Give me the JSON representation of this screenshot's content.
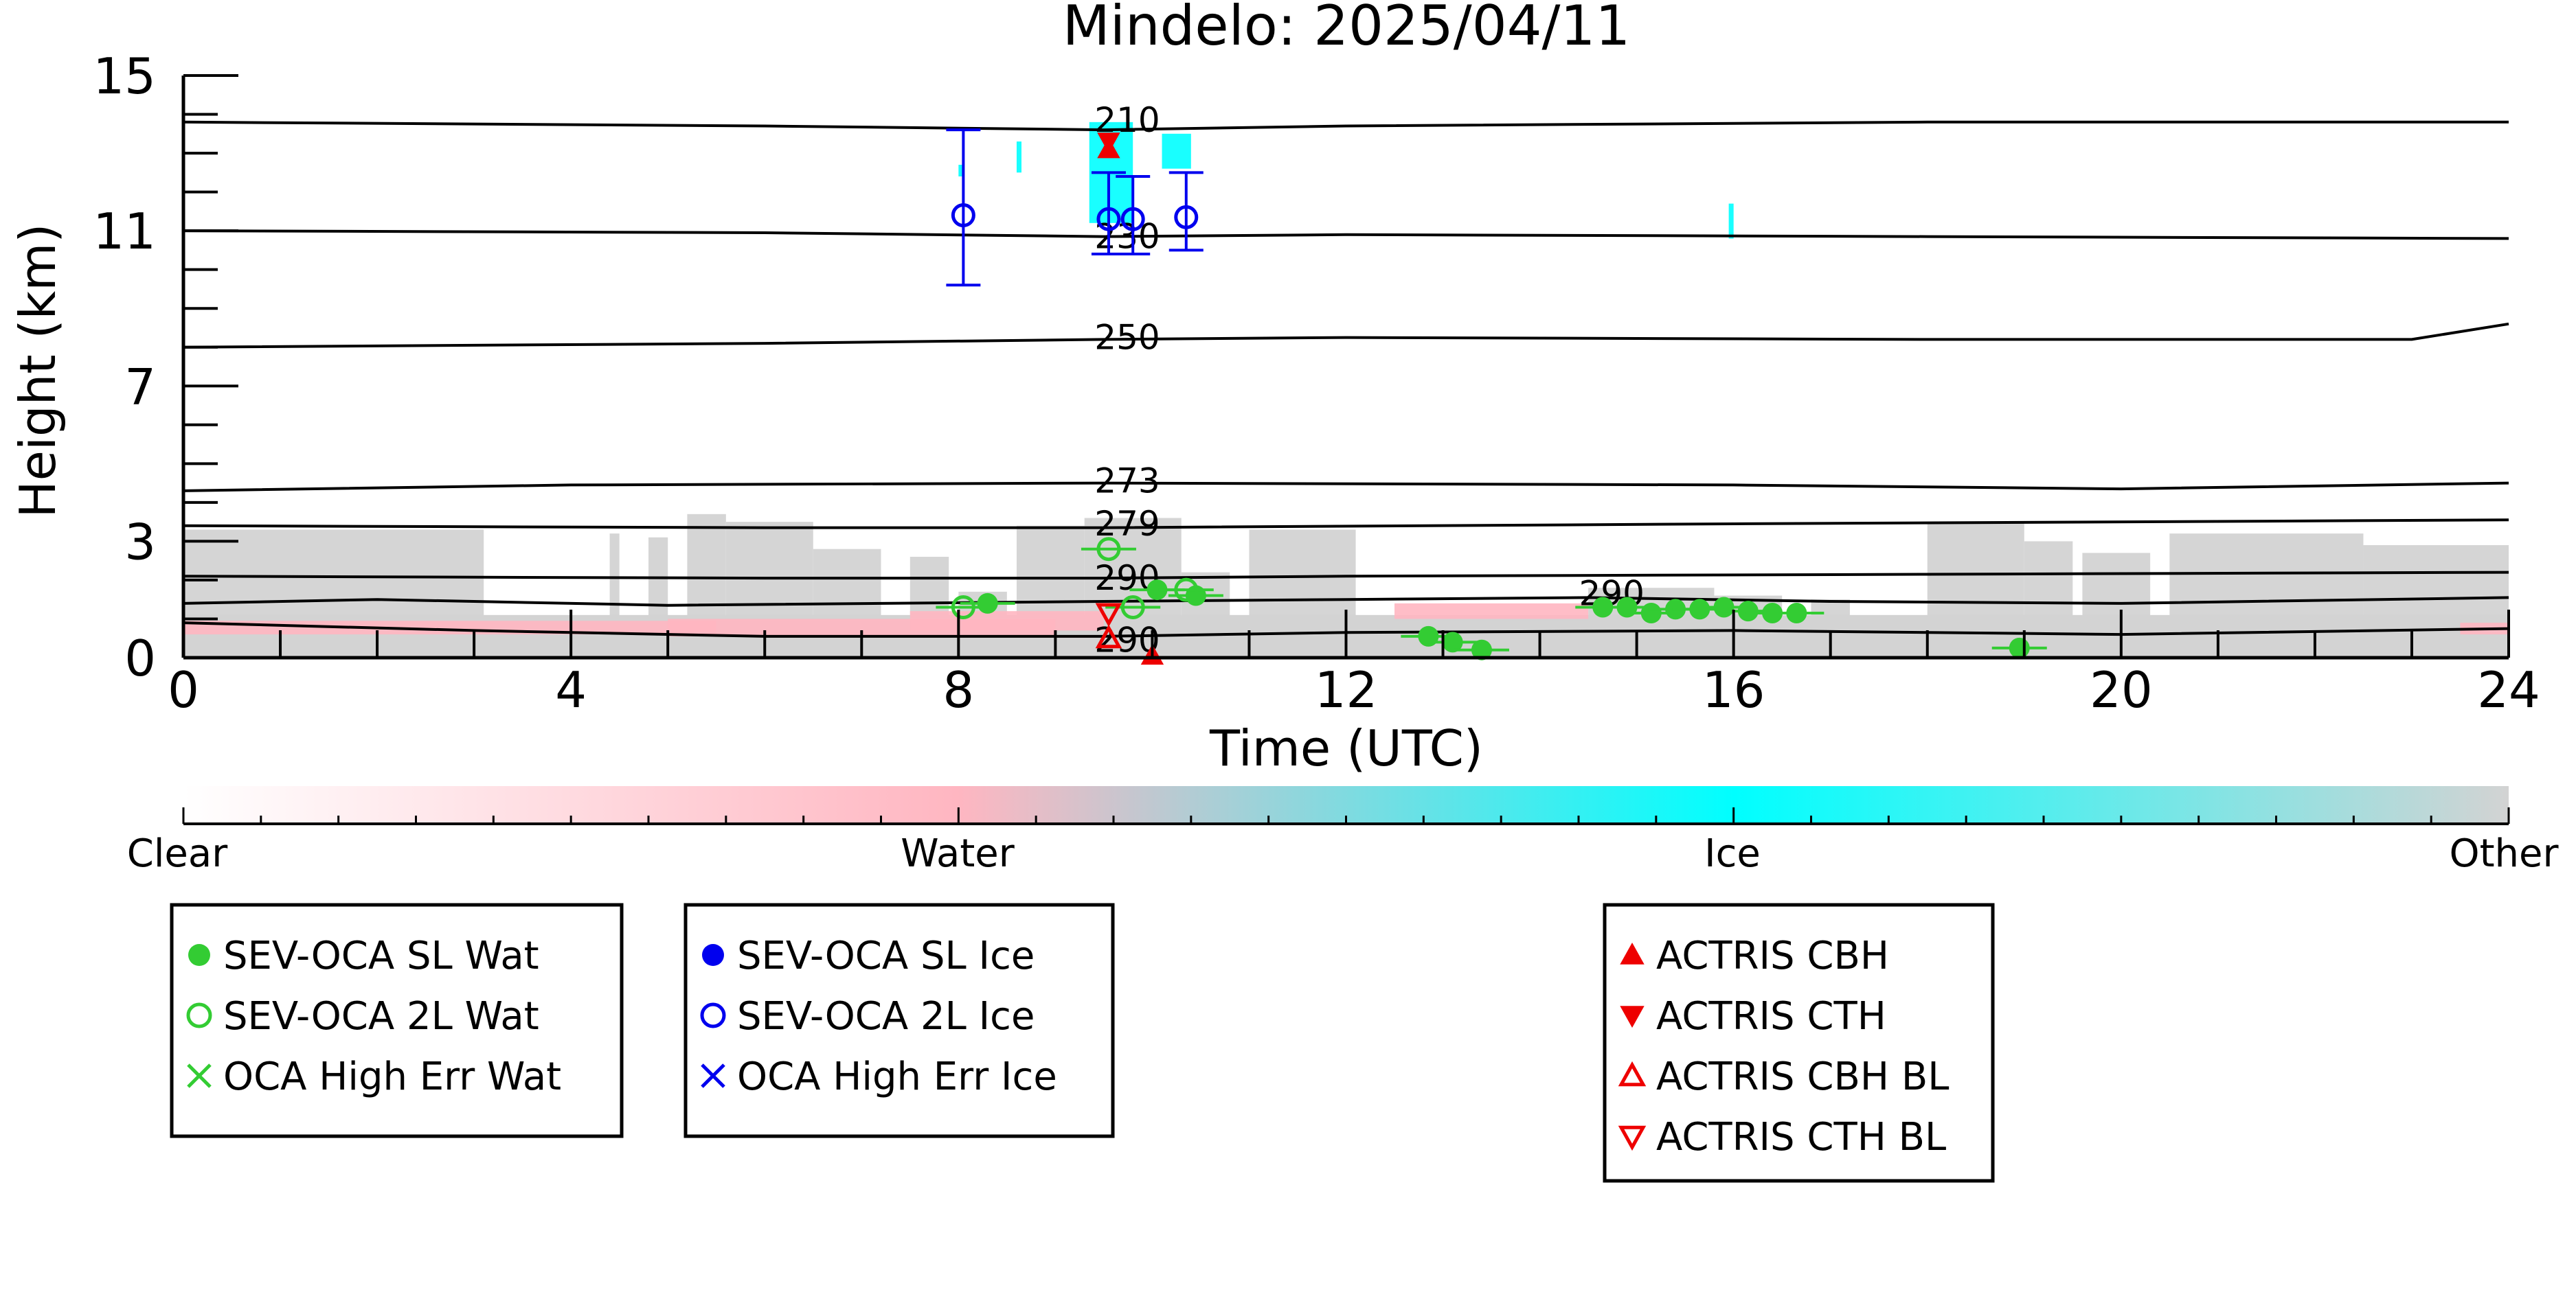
{
  "chart_data": {
    "type": "scatter",
    "title": "Mindelo: 2025/04/11",
    "xlabel": "Time (UTC)",
    "ylabel": "Height (km)",
    "xlim": [
      0,
      24
    ],
    "ylim": [
      0,
      15
    ],
    "x_ticks": [
      0,
      4,
      8,
      12,
      16,
      20,
      24
    ],
    "x_tick_labels": [
      "0",
      "4",
      "8",
      "12",
      "16",
      "20",
      "24"
    ],
    "y_ticks": [
      0,
      3,
      7,
      11,
      15
    ],
    "y_tick_labels": [
      "0",
      "3",
      "7",
      "11",
      "15"
    ],
    "colorbar": {
      "labels": [
        "Clear",
        "Water",
        "Ice",
        "Other"
      ],
      "colors": [
        "#ffffff",
        "#ffb6c1",
        "#00ffff",
        "#d3d3d3"
      ]
    },
    "temperature_contours": [
      {
        "label": "210",
        "points": [
          [
            0,
            13.8
          ],
          [
            6,
            13.7
          ],
          [
            9.5,
            13.6
          ],
          [
            12,
            13.7
          ],
          [
            18,
            13.8
          ],
          [
            24,
            13.8
          ]
        ]
      },
      {
        "label": "230",
        "points": [
          [
            0,
            11.0
          ],
          [
            6,
            10.95
          ],
          [
            9.5,
            10.85
          ],
          [
            12,
            10.9
          ],
          [
            18,
            10.85
          ],
          [
            24,
            10.8
          ]
        ]
      },
      {
        "label": "250",
        "points": [
          [
            0,
            8.0
          ],
          [
            6,
            8.1
          ],
          [
            9.5,
            8.2
          ],
          [
            12,
            8.25
          ],
          [
            18,
            8.2
          ],
          [
            23,
            8.2
          ],
          [
            24,
            8.6
          ]
        ]
      },
      {
        "label": "273",
        "points": [
          [
            0,
            4.3
          ],
          [
            4,
            4.45
          ],
          [
            9.5,
            4.5
          ],
          [
            16,
            4.45
          ],
          [
            20,
            4.35
          ],
          [
            24,
            4.5
          ]
        ]
      },
      {
        "label": "279",
        "points": [
          [
            0,
            3.4
          ],
          [
            6,
            3.35
          ],
          [
            9.5,
            3.35
          ],
          [
            16,
            3.45
          ],
          [
            24,
            3.55
          ]
        ]
      },
      {
        "label": "290",
        "points": [
          [
            0,
            2.1
          ],
          [
            6,
            2.05
          ],
          [
            9.5,
            2.05
          ],
          [
            12,
            2.1
          ],
          [
            18,
            2.15
          ],
          [
            24,
            2.2
          ]
        ]
      },
      {
        "label": "290",
        "points": [
          [
            0,
            1.4
          ],
          [
            2,
            1.5
          ],
          [
            5,
            1.35
          ],
          [
            9.5,
            1.45
          ],
          [
            12,
            1.5
          ],
          [
            14.5,
            1.55
          ],
          [
            17,
            1.45
          ],
          [
            20,
            1.4
          ],
          [
            24,
            1.55
          ]
        ]
      },
      {
        "label": "290",
        "points": [
          [
            0,
            0.9
          ],
          [
            3,
            0.7
          ],
          [
            6,
            0.55
          ],
          [
            9.5,
            0.55
          ],
          [
            12,
            0.65
          ],
          [
            16,
            0.7
          ],
          [
            20,
            0.6
          ],
          [
            24,
            0.75
          ]
        ]
      }
    ],
    "contour_labels": [
      {
        "text": "210",
        "x": 9.6,
        "y": 13.8
      },
      {
        "text": "230",
        "x": 9.6,
        "y": 10.8
      },
      {
        "text": "250",
        "x": 9.6,
        "y": 8.2
      },
      {
        "text": "273",
        "x": 9.6,
        "y": 4.5
      },
      {
        "text": "279",
        "x": 9.6,
        "y": 3.4
      },
      {
        "text": "290",
        "x": 9.6,
        "y": 2.0
      },
      {
        "text": "290",
        "x": 14.6,
        "y": 1.6
      },
      {
        "text": "290",
        "x": 9.6,
        "y": 0.4
      }
    ],
    "series": [
      {
        "name": "SEV-OCA SL Wat",
        "marker": "filled-circle",
        "color": "#33cc33",
        "points": [
          [
            8.3,
            1.4
          ],
          [
            10.05,
            1.75
          ],
          [
            12.85,
            0.55
          ],
          [
            13.1,
            0.4
          ],
          [
            13.4,
            0.2
          ],
          [
            14.65,
            1.3
          ],
          [
            14.9,
            1.3
          ],
          [
            15.15,
            1.15
          ],
          [
            15.4,
            1.25
          ],
          [
            15.65,
            1.25
          ],
          [
            15.9,
            1.3
          ],
          [
            16.15,
            1.2
          ],
          [
            16.4,
            1.15
          ],
          [
            16.65,
            1.15
          ],
          [
            18.95,
            0.25
          ],
          [
            10.45,
            1.6
          ]
        ]
      },
      {
        "name": "SEV-OCA 2L Wat",
        "marker": "open-circle",
        "color": "#33cc33",
        "points": [
          [
            8.05,
            1.3
          ],
          [
            9.55,
            2.8
          ],
          [
            9.8,
            1.3
          ],
          [
            10.35,
            1.75
          ]
        ]
      },
      {
        "name": "OCA High Err Wat",
        "marker": "x",
        "color": "#33cc33",
        "points": []
      },
      {
        "name": "SEV-OCA SL Ice",
        "marker": "filled-circle",
        "color": "#0000ee",
        "points": []
      },
      {
        "name": "SEV-OCA 2L Ice",
        "marker": "open-circle",
        "color": "#0000ee",
        "points": [
          [
            8.05,
            11.4
          ],
          [
            9.55,
            11.3
          ],
          [
            9.8,
            11.3
          ],
          [
            10.35,
            11.35
          ]
        ],
        "error_bars": [
          [
            9.6,
            13.6
          ],
          [
            10.4,
            12.5
          ],
          [
            10.4,
            12.4
          ],
          [
            10.5,
            12.5
          ]
        ]
      },
      {
        "name": "OCA High Err Ice",
        "marker": "x",
        "color": "#0000ee",
        "points": []
      },
      {
        "name": "ACTRIS CBH",
        "marker": "filled-triangle-up",
        "color": "#ee0000",
        "points": [
          [
            9.55,
            13.1
          ],
          [
            10.0,
            0.05
          ]
        ]
      },
      {
        "name": "ACTRIS CTH",
        "marker": "filled-triangle-down",
        "color": "#ee0000",
        "points": [
          [
            9.55,
            13.3
          ]
        ]
      },
      {
        "name": "ACTRIS CBH BL",
        "marker": "open-triangle-up",
        "color": "#ee0000",
        "points": [
          [
            9.55,
            0.5
          ]
        ]
      },
      {
        "name": "ACTRIS CTH BL",
        "marker": "open-triangle-down",
        "color": "#ee0000",
        "points": [
          [
            9.55,
            1.15
          ]
        ]
      }
    ],
    "legend_boxes": [
      [
        "SEV-OCA SL Wat",
        "SEV-OCA 2L Wat",
        "OCA High Err Wat"
      ],
      [
        "SEV-OCA SL Ice",
        "SEV-OCA 2L Ice",
        "OCA High Err Ice"
      ],
      [
        "ACTRIS CBH",
        "ACTRIS CTH",
        "ACTRIS CBH BL",
        "ACTRIS CTH BL"
      ]
    ],
    "grid": false
  }
}
